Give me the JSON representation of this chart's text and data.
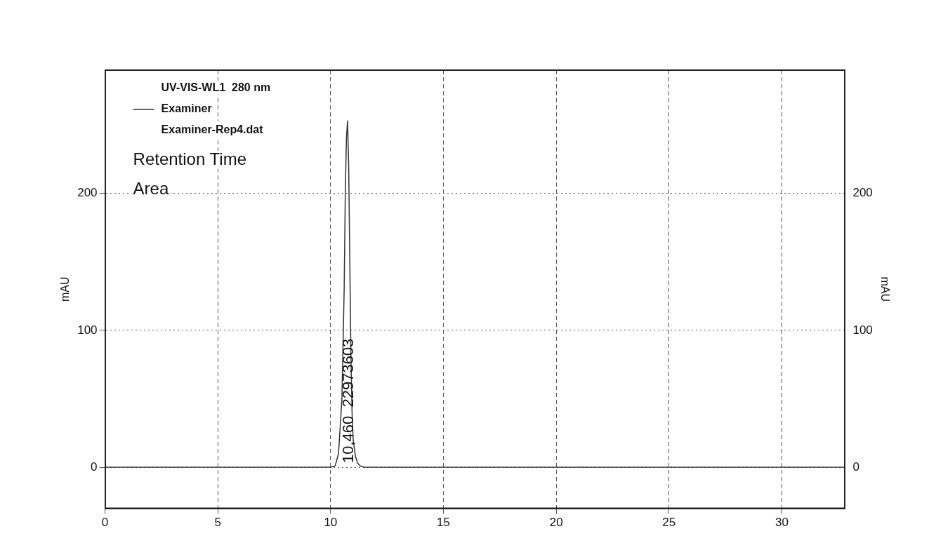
{
  "chart_data": {
    "type": "line",
    "legend_title": "UV-VIS-WL1  280 nm",
    "ylabel": "mAU",
    "y2label": "mAU",
    "x": [
      0,
      2,
      4,
      6,
      8,
      9,
      10,
      10.2,
      10.35,
      10.5,
      10.6,
      10.65,
      10.7,
      10.75,
      10.8,
      10.85,
      10.9,
      10.95,
      11.0,
      11.1,
      11.2,
      11.3,
      11.5,
      12,
      15,
      20,
      25,
      30,
      32.8
    ],
    "series": [
      {
        "name": "Examiner",
        "color": "#333333",
        "values": [
          0,
          0,
          0,
          0,
          0,
          0,
          0,
          1,
          10,
          50,
          130,
          200,
          240,
          253,
          220,
          150,
          80,
          40,
          20,
          8,
          3,
          1,
          0,
          0,
          0,
          0,
          0,
          0,
          0
        ]
      }
    ],
    "annotations": [
      "Examiner-Rep4.dat",
      "Retention Time",
      "Area",
      "10,460  22973603"
    ],
    "xlim": [
      0,
      32.8
    ],
    "xticks": [
      0,
      5,
      10,
      15,
      20,
      25,
      30
    ],
    "ylim": [
      -30,
      290
    ],
    "yticks": [
      0,
      100,
      200
    ],
    "y2lim": [
      -30,
      290
    ],
    "y2ticks": [
      0,
      100,
      200
    ],
    "grid": true,
    "legend": "top left",
    "marker": "none",
    "line_style": "solid"
  }
}
